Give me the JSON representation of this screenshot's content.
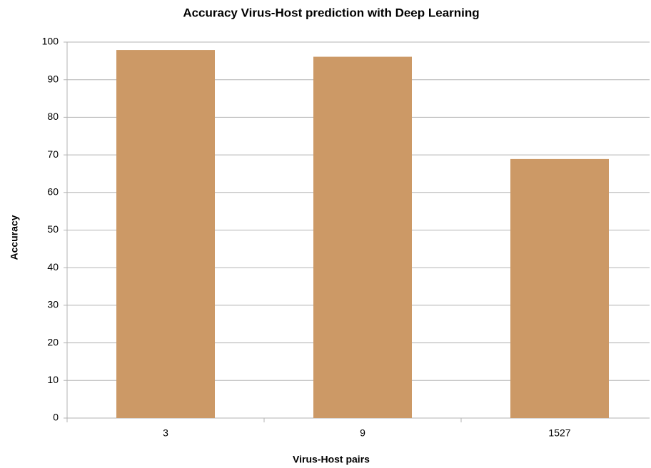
{
  "chart_data": {
    "type": "bar",
    "title": "Accuracy Virus-Host prediction with Deep Learning",
    "x_label": "Virus-Host pairs",
    "y_label": "Accuracy",
    "categories": [
      "3",
      "9",
      "1527"
    ],
    "values": [
      97.9,
      96.1,
      68.9
    ],
    "color": "#cc9966",
    "ylim": [
      0,
      100
    ],
    "yticks": [
      0,
      10,
      20,
      30,
      40,
      50,
      60,
      70,
      80,
      90,
      100
    ],
    "grid": true
  }
}
